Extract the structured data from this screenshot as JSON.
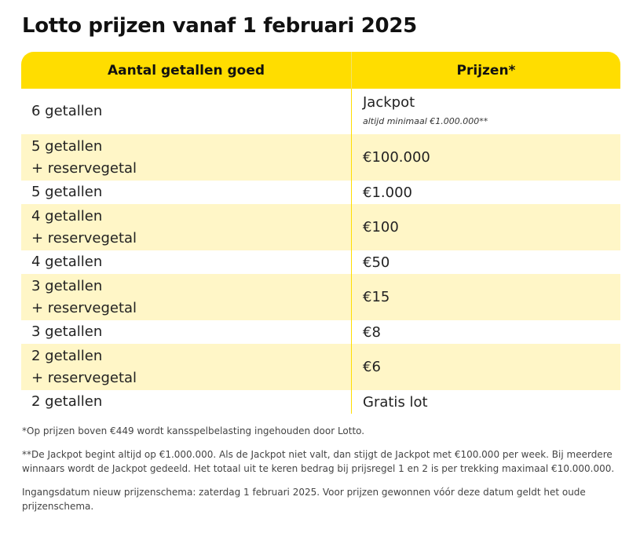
{
  "title": "Lotto prijzen vanaf 1 februari 2025",
  "table": {
    "headers": [
      "Aantal getallen goed",
      "Prijzen*"
    ],
    "rows": [
      {
        "matches_line1": "6 getallen",
        "matches_line2": "",
        "prize": "Jackpot",
        "prize_note": "altijd minimaal €1.000.000**"
      },
      {
        "matches_line1": "5 getallen",
        "matches_line2": "+ reservegetal",
        "prize": "€100.000"
      },
      {
        "matches_line1": "5 getallen",
        "matches_line2": "",
        "prize": "€1.000"
      },
      {
        "matches_line1": "4 getallen",
        "matches_line2": "+ reservegetal",
        "prize": "€100"
      },
      {
        "matches_line1": "4 getallen",
        "matches_line2": "",
        "prize": "€50"
      },
      {
        "matches_line1": "3 getallen",
        "matches_line2": "+ reservegetal",
        "prize": "€15"
      },
      {
        "matches_line1": "3 getallen",
        "matches_line2": "",
        "prize": "€8"
      },
      {
        "matches_line1": "2 getallen",
        "matches_line2": "+ reservegetal",
        "prize": "€6"
      },
      {
        "matches_line1": "2 getallen",
        "matches_line2": "",
        "prize": "Gratis lot"
      }
    ]
  },
  "footnotes": [
    "*Op prijzen boven €449 wordt kansspelbelasting ingehouden door Lotto.",
    "**De Jackpot begint altijd op €1.000.000. Als de Jackpot niet valt, dan stijgt de Jackpot met €100.000 per week. Bij meerdere winnaars wordt de Jackpot gedeeld. Het totaal uit te keren bedrag bij prijsregel 1 en 2 is per trekking maximaal €10.000.000.",
    "Ingangsdatum nieuw prijzenschema: zaterdag 1 februari 2025. Voor prijzen gewonnen vóór deze datum geldt het oude prijzenschema."
  ],
  "colors": {
    "header_bg": "#FFDD00",
    "alt_row_bg": "#FFF6C7"
  }
}
